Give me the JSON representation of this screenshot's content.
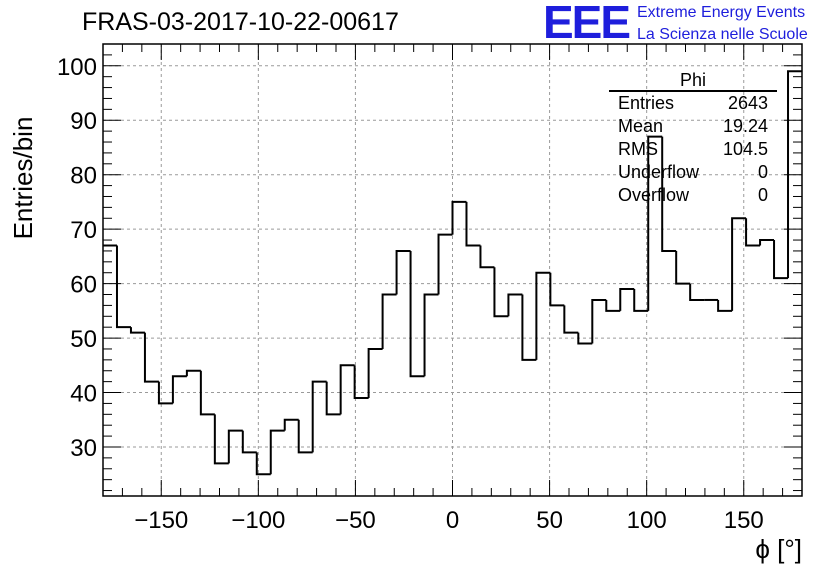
{
  "title": "FRAS-03-2017-10-22-00617",
  "logo": {
    "mark": "EEE",
    "line1": "Extreme Energy Events",
    "line2": "La Scienza nelle Scuole"
  },
  "stats_box": {
    "title": "Phi",
    "rows": [
      {
        "label": "Entries",
        "value": "2643"
      },
      {
        "label": "Mean",
        "value": "19.24"
      },
      {
        "label": "RMS",
        "value": "104.5"
      },
      {
        "label": "Underflow",
        "value": "0"
      },
      {
        "label": "Overflow",
        "value": "0"
      }
    ]
  },
  "chart_data": {
    "type": "histogram",
    "xlabel": "ϕ [°]",
    "ylabel": "Entries/bin",
    "xlim": [
      -180,
      180
    ],
    "ylim": [
      21,
      104
    ],
    "bin_width": 7.2,
    "x_ticks": [
      -150,
      -100,
      -50,
      0,
      50,
      100,
      150
    ],
    "y_ticks": [
      30,
      40,
      50,
      60,
      70,
      80,
      90,
      100
    ],
    "grid": true,
    "line_color": "#000000",
    "values": [
      67,
      52,
      51,
      42,
      38,
      43,
      44,
      36,
      27,
      33,
      29,
      25,
      33,
      35,
      29,
      42,
      36,
      45,
      39,
      48,
      58,
      66,
      43,
      58,
      69,
      75,
      67,
      63,
      54,
      58,
      46,
      62,
      56,
      51,
      49,
      57,
      55,
      59,
      55,
      87,
      66,
      60,
      57,
      57,
      55,
      72,
      67,
      68,
      61,
      99
    ]
  }
}
